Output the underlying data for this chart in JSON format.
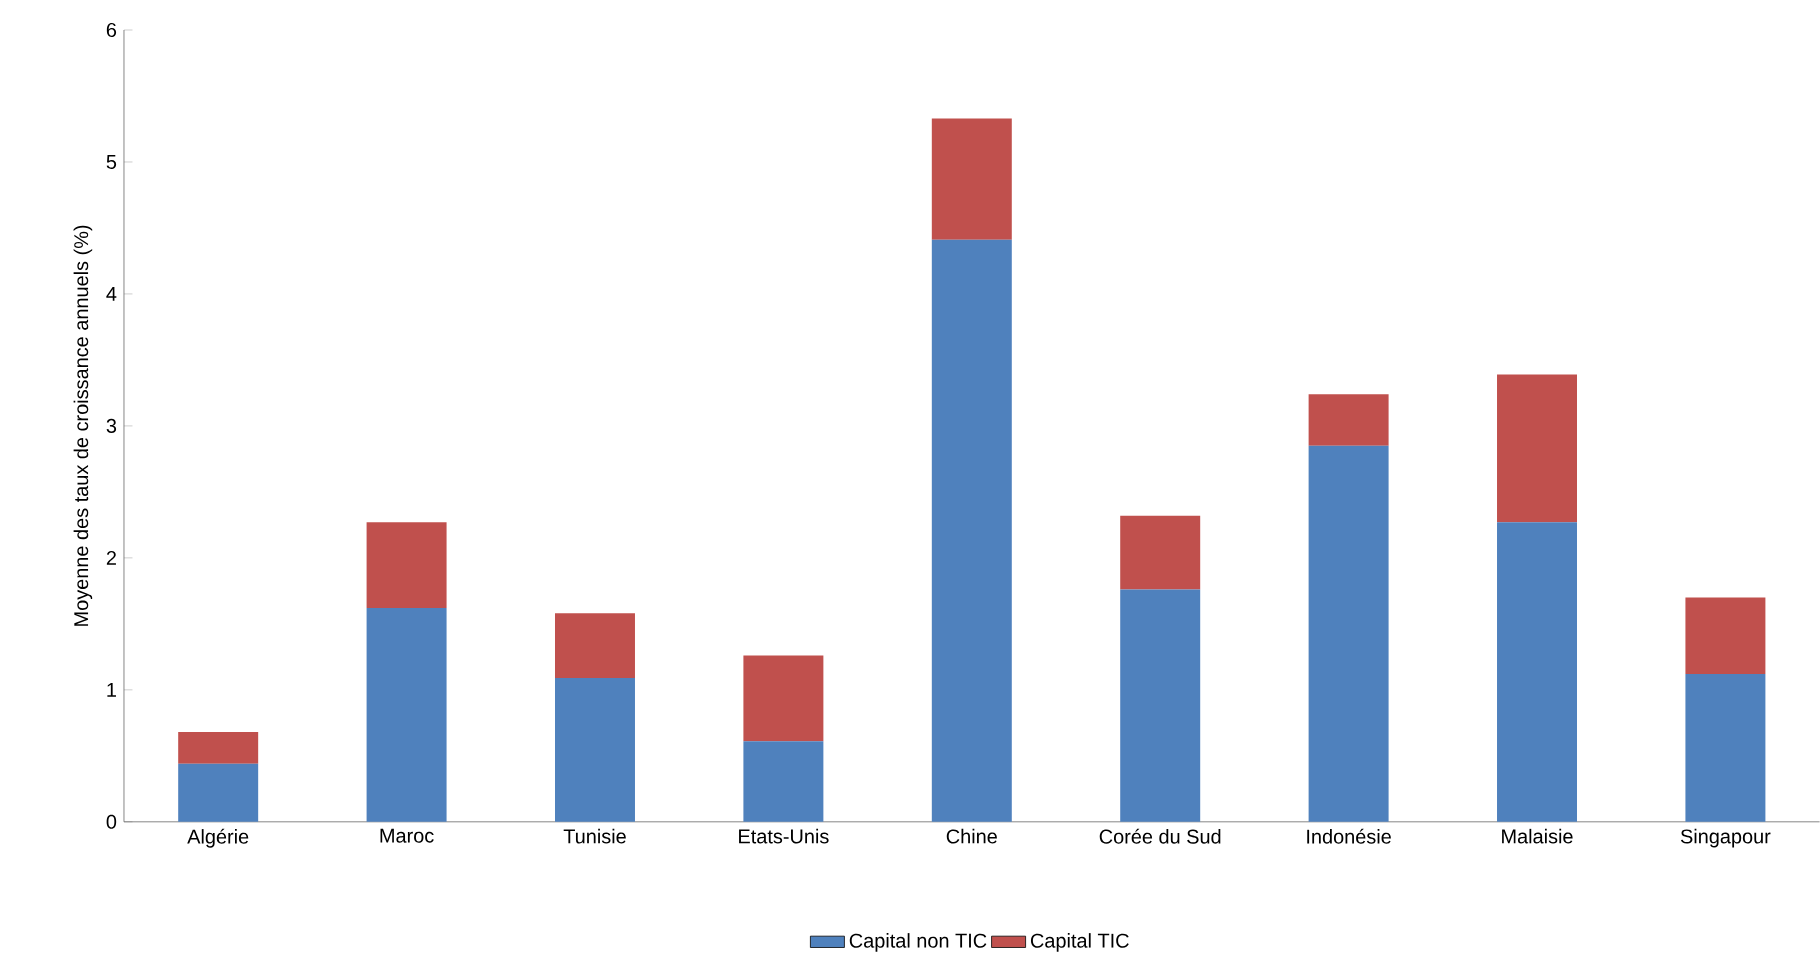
{
  "chart_data": {
    "type": "bar",
    "stacked": true,
    "ylabel": "Moyenne des taux de croissance annuels (%)",
    "categories": [
      "Algérie",
      "Maroc",
      "Tunisie",
      "Etats-Unis",
      "Chine",
      "Corée du Sud",
      "Indonésie",
      "Malaisie",
      "Singapour"
    ],
    "series": [
      {
        "name": "Capital non TIC",
        "color": "#4f81bd",
        "values": [
          0.44,
          1.62,
          1.09,
          0.61,
          4.41,
          1.76,
          2.85,
          2.27,
          1.12
        ]
      },
      {
        "name": "Capital TIC",
        "color": "#c0504d",
        "values": [
          0.24,
          0.65,
          0.49,
          0.65,
          0.92,
          0.56,
          0.39,
          1.12,
          0.58
        ]
      }
    ],
    "ylim": [
      0,
      6
    ],
    "yticks": [
      0,
      1,
      2,
      3,
      4,
      5,
      6
    ],
    "legend": "bottom"
  }
}
